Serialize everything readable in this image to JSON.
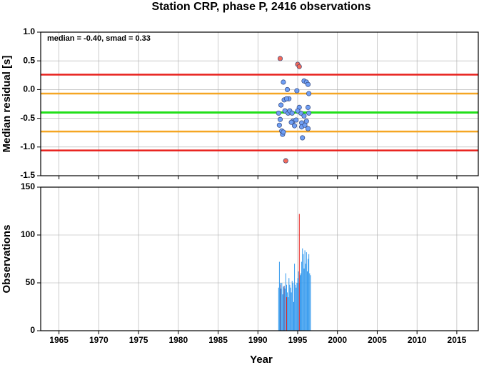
{
  "chart_data": [
    {
      "type": "scatter",
      "title": "Station CRP, phase P, 2416 observations",
      "ylabel": "Median residual [s]",
      "annotation": "median = -0.40, smad = 0.33",
      "xlim": [
        1962.7,
        2017.7
      ],
      "ylim": [
        -1.5,
        1.0
      ],
      "xticks": [
        1965,
        1970,
        1975,
        1980,
        1985,
        1990,
        1995,
        2000,
        2005,
        2010,
        2015
      ],
      "xtick_labels": false,
      "yticks": [
        {
          "value": 1.0,
          "label": "1.0"
        },
        0.5,
        {
          "value": 0.0,
          "label": "0.0"
        },
        -0.5,
        {
          "value": -1.0,
          "label": "-1.0"
        },
        -1.5
      ],
      "grid": true,
      "reference_lines": [
        {
          "value": 0.26,
          "color": "#e8201c"
        },
        {
          "value": -0.07,
          "color": "#f5a623"
        },
        {
          "value": -0.4,
          "color": "#22e01a"
        },
        {
          "value": -0.73,
          "color": "#f5a623"
        },
        {
          "value": -1.06,
          "color": "#e8201c"
        }
      ],
      "series": [
        {
          "color": "#6f9ff5",
          "x": [
            1993.2,
            1993.7,
            1993.9,
            1993.3,
            1992.9,
            1992.6,
            1992.8,
            1992.7,
            1993.0,
            1993.1,
            1993.4,
            1993.8,
            1994.0,
            1994.3,
            1994.4,
            1994.6,
            1994.8,
            1994.9,
            1995.2,
            1995.4,
            1995.5,
            1995.5,
            1995.6,
            1995.8,
            1996.1,
            1996.3,
            1996.4,
            1996.3,
            1996.4,
            1996.1,
            1996.3,
            1995.9,
            1994.2,
            1993.6,
            1993.2,
            1995.0,
            1995.8
          ],
          "values": [
            0.13,
            0.0,
            -0.16,
            -0.18,
            -0.27,
            -0.41,
            -0.52,
            -0.62,
            -0.72,
            -0.78,
            -0.37,
            -0.41,
            -0.37,
            -0.41,
            -0.55,
            -0.63,
            -0.53,
            -0.02,
            -0.31,
            -0.41,
            -0.58,
            -0.65,
            -0.84,
            0.15,
            0.13,
            0.09,
            -0.07,
            -0.31,
            -0.41,
            -0.55,
            -0.68,
            -0.62,
            -0.57,
            -0.16,
            -0.74,
            -0.37,
            -0.46
          ]
        },
        {
          "color": "#f36a5a",
          "x": [
            1992.8,
            1995.0,
            1995.2,
            1993.5
          ],
          "values": [
            0.54,
            0.44,
            0.4,
            -1.24
          ]
        }
      ]
    },
    {
      "type": "bar",
      "ylabel": "Observations",
      "xlabel": "Year",
      "xlim": [
        1962.7,
        2017.7
      ],
      "ylim": [
        0,
        150
      ],
      "xticks": [
        1965,
        1970,
        1975,
        1980,
        1985,
        1990,
        1995,
        2000,
        2005,
        2010,
        2015
      ],
      "xtick_labels": true,
      "yticks": [
        0,
        50,
        100,
        150
      ],
      "grid": true,
      "bar_width": 0.08,
      "series": [
        {
          "color": "#3399ee",
          "x": [
            1992.6,
            1992.7,
            1992.8,
            1992.9,
            1993.0,
            1993.1,
            1993.2,
            1993.3,
            1993.4,
            1993.5,
            1993.6,
            1993.7,
            1993.8,
            1993.9,
            1994.0,
            1994.1,
            1994.2,
            1994.3,
            1994.4,
            1994.5,
            1994.6,
            1994.7,
            1994.8,
            1994.9,
            1995.0,
            1995.1,
            1995.2,
            1995.3,
            1995.4,
            1995.5,
            1995.6,
            1995.7,
            1995.8,
            1995.9,
            1996.0,
            1996.1,
            1996.2,
            1996.3,
            1996.4,
            1996.5,
            1996.6
          ],
          "values": [
            45,
            72,
            50,
            44,
            50,
            38,
            46,
            45,
            44,
            60,
            48,
            40,
            35,
            55,
            48,
            45,
            40,
            52,
            50,
            30,
            70,
            48,
            45,
            50,
            55,
            62,
            50,
            58,
            60,
            72,
            86,
            80,
            65,
            84,
            70,
            82,
            62,
            75,
            80,
            60,
            58
          ]
        },
        {
          "color": "#5a5a9a",
          "x": [
            1992.8,
            1993.3
          ],
          "values": [
            48,
            47
          ]
        },
        {
          "color": "#e8201c",
          "x": [
            1993.6,
            1995.2
          ],
          "values": [
            35,
            122
          ]
        }
      ]
    }
  ]
}
